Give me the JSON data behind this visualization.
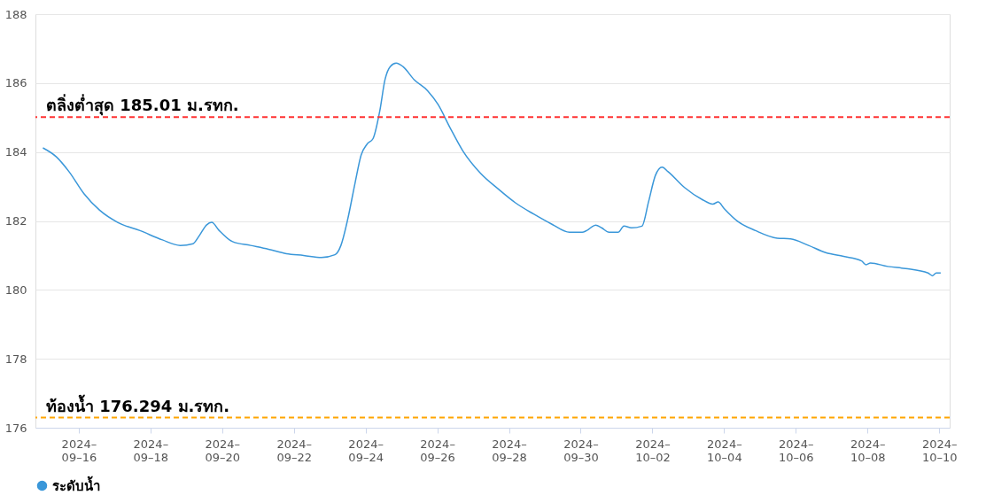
{
  "chart_data": {
    "type": "line",
    "legend": "bottom",
    "grid": "y",
    "xlim": [
      "2024-09-14T19:00",
      "2024-10-10T07:00"
    ],
    "xticks": [
      {
        "value": "2024-09-16",
        "label": "2024–09–16"
      },
      {
        "value": "2024-09-18",
        "label": "2024–09–18"
      },
      {
        "value": "2024-09-20",
        "label": "2024–09–20"
      },
      {
        "value": "2024-09-22",
        "label": "2024–09–22"
      },
      {
        "value": "2024-09-24",
        "label": "2024–09–24"
      },
      {
        "value": "2024-09-26",
        "label": "2024–09–26"
      },
      {
        "value": "2024-09-28",
        "label": "2024–09–28"
      },
      {
        "value": "2024-09-30",
        "label": "2024–09–30"
      },
      {
        "value": "2024-10-02",
        "label": "2024–10–02"
      },
      {
        "value": "2024-10-04",
        "label": "2024–10–04"
      },
      {
        "value": "2024-10-06",
        "label": "2024–10–06"
      },
      {
        "value": "2024-10-08",
        "label": "2024–10–08"
      },
      {
        "value": "2024-10-10",
        "label": "2024–10–10"
      }
    ],
    "ylim": [
      176,
      188
    ],
    "yticks": [
      176,
      178,
      180,
      182,
      184,
      186,
      188
    ],
    "x": [
      "2024-09-15T00:00",
      "2024-09-15T09:00",
      "2024-09-15T17:30",
      "2024-09-16T03:30",
      "2024-09-16T14:00",
      "2024-09-17T02:00",
      "2024-09-17T17:00",
      "2024-09-18T08:00",
      "2024-09-18T20:00",
      "2024-09-19T04:30",
      "2024-09-19T08:30",
      "2024-09-19T13:30",
      "2024-09-19T17:00",
      "2024-09-19T22:00",
      "2024-09-20T07:00",
      "2024-09-20T19:00",
      "2024-09-21T07:00",
      "2024-09-21T19:00",
      "2024-09-22T06:30",
      "2024-09-22T18:30",
      "2024-09-23T03:30",
      "2024-09-23T07:30",
      "2024-09-23T12:00",
      "2024-09-23T17:00",
      "2024-09-23T21:00",
      "2024-09-24T01:00",
      "2024-09-24T05:00",
      "2024-09-24T09:30",
      "2024-09-24T13:00",
      "2024-09-24T16:30",
      "2024-09-24T20:30",
      "2024-09-25T01:00",
      "2024-09-25T08:30",
      "2024-09-25T17:30",
      "2024-09-26T00:30",
      "2024-09-26T08:30",
      "2024-09-26T17:00",
      "2024-09-27T05:00",
      "2024-09-27T17:00",
      "2024-09-28T04:30",
      "2024-09-28T16:30",
      "2024-09-29T04:30",
      "2024-09-29T16:30",
      "2024-09-30T01:00",
      "2024-09-30T04:00",
      "2024-09-30T10:00",
      "2024-09-30T14:00",
      "2024-09-30T19:00",
      "2024-10-01T01:00",
      "2024-10-01T05:00",
      "2024-10-01T10:00",
      "2024-10-01T17:00",
      "2024-10-01T21:30",
      "2024-10-02T02:00",
      "2024-10-02T06:30",
      "2024-10-02T10:30",
      "2024-10-02T21:30",
      "2024-10-03T09:00",
      "2024-10-03T16:30",
      "2024-10-03T20:00",
      "2024-10-04T00:00",
      "2024-10-04T09:00",
      "2024-10-04T21:00",
      "2024-10-05T11:30",
      "2024-10-05T20:30",
      "2024-10-06T08:30",
      "2024-10-06T20:00",
      "2024-10-07T08:00",
      "2024-10-07T20:00",
      "2024-10-07T23:00",
      "2024-10-08T02:00",
      "2024-10-08T13:30",
      "2024-10-09T01:30",
      "2024-10-09T16:30",
      "2024-10-09T19:30",
      "2024-10-09T22:00",
      "2024-10-10T01:00"
    ],
    "series": [
      {
        "name": "ระดับน้ำ",
        "color": "#3a97d9",
        "values": [
          184.12,
          183.86,
          183.43,
          182.79,
          182.31,
          181.96,
          181.72,
          181.45,
          181.29,
          181.34,
          181.56,
          181.88,
          181.96,
          181.72,
          181.4,
          181.29,
          181.18,
          181.05,
          181.0,
          180.94,
          181.02,
          181.29,
          182.04,
          183.11,
          183.91,
          184.23,
          184.39,
          185.19,
          186.1,
          186.48,
          186.58,
          186.48,
          186.1,
          185.78,
          185.38,
          184.71,
          184.04,
          183.38,
          182.92,
          182.52,
          182.2,
          181.91,
          181.67,
          181.67,
          181.72,
          181.88,
          181.8,
          181.67,
          181.67,
          181.85,
          181.8,
          181.85,
          182.57,
          183.32,
          183.56,
          183.43,
          182.97,
          182.63,
          182.49,
          182.55,
          182.36,
          181.99,
          181.72,
          181.5,
          181.48,
          181.29,
          181.08,
          180.97,
          180.84,
          180.73,
          180.78,
          180.68,
          180.62,
          180.49,
          180.41,
          180.49,
          180.49
        ]
      }
    ],
    "ref_lines": [
      {
        "axis": "y",
        "value": 185.01,
        "label": "ตลิ่งต่ำสุด 185.01 ม.รทก.",
        "color": "#ff3333",
        "line_style": "dashed"
      },
      {
        "axis": "y",
        "value": 176.294,
        "label": "ท้องน้ำ 176.294 ม.รทก.",
        "color": "#ffa500",
        "line_style": "dashed"
      }
    ]
  }
}
